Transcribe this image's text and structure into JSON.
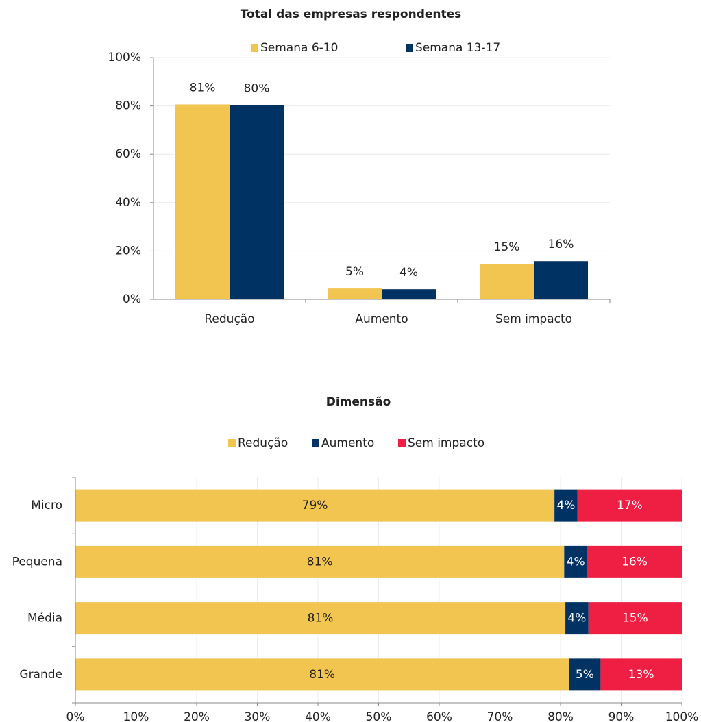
{
  "chart_data": [
    {
      "type": "bar",
      "title": "Total das empresas respondentes",
      "categories": [
        "Redução",
        "Aumento",
        "Sem impacto"
      ],
      "series": [
        {
          "name": "Semana 6-10",
          "color": "#f2c450",
          "values": [
            80.6,
            4.5,
            14.7
          ],
          "value_labels": [
            "81%",
            "5%",
            "15%"
          ]
        },
        {
          "name": "Semana 13-17",
          "color": "#003264",
          "values": [
            80.3,
            4.2,
            15.8
          ],
          "value_labels": [
            "80%",
            "4%",
            "16%"
          ]
        }
      ],
      "ylim": [
        0,
        100
      ],
      "yticks": [
        {
          "value": 0,
          "label": "0%"
        },
        {
          "value": 20,
          "label": "20%"
        },
        {
          "value": 40,
          "label": "40%"
        },
        {
          "value": 60,
          "label": "60%"
        },
        {
          "value": 80,
          "label": "80%"
        },
        {
          "value": 100,
          "label": "100%"
        }
      ],
      "grid": true,
      "legend": "top"
    },
    {
      "type": "stacked-barh",
      "title": "Dimensão",
      "categories": [
        "Micro",
        "Pequena",
        "Média",
        "Grande"
      ],
      "series": [
        {
          "name": "Redução",
          "color": "#f2c450",
          "values": [
            79.0,
            80.6,
            80.8,
            81.4
          ],
          "value_labels": [
            "79%",
            "81%",
            "81%",
            "81%"
          ]
        },
        {
          "name": "Aumento",
          "color": "#003264",
          "values": [
            3.8,
            3.8,
            3.8,
            5.2
          ],
          "value_labels": [
            "4%",
            "4%",
            "4%",
            "5%"
          ]
        },
        {
          "name": "Sem impacto",
          "color": "#ef1f44",
          "values": [
            17.2,
            15.6,
            15.4,
            13.4
          ],
          "value_labels": [
            "17%",
            "16%",
            "15%",
            "13%"
          ]
        }
      ],
      "xlim": [
        0,
        100
      ],
      "xticks": [
        {
          "value": 0,
          "label": "0%"
        },
        {
          "value": 10,
          "label": "10%"
        },
        {
          "value": 20,
          "label": "20%"
        },
        {
          "value": 30,
          "label": "30%"
        },
        {
          "value": 40,
          "label": "40%"
        },
        {
          "value": 50,
          "label": "50%"
        },
        {
          "value": 60,
          "label": "60%"
        },
        {
          "value": 70,
          "label": "70%"
        },
        {
          "value": 80,
          "label": "80%"
        },
        {
          "value": 90,
          "label": "90%"
        },
        {
          "value": 100,
          "label": "100%"
        }
      ],
      "grid": true,
      "legend": "top"
    }
  ]
}
